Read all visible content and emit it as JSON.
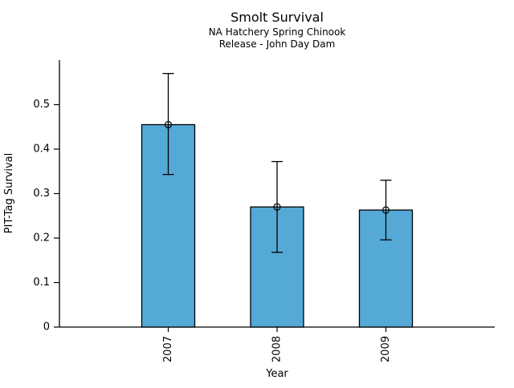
{
  "chart_data": {
    "type": "bar",
    "title": "Smolt Survival",
    "subtitle": [
      "NA Hatchery Spring Chinook",
      "Release - John Day Dam"
    ],
    "xlabel": "Year",
    "ylabel": "PIT-Tag Survival",
    "categories": [
      "2007",
      "2008",
      "2009"
    ],
    "values": [
      0.455,
      0.27,
      0.263
    ],
    "error_low": [
      0.343,
      0.168,
      0.196
    ],
    "error_high": [
      0.57,
      0.372,
      0.33
    ],
    "marker": "open-circle",
    "ylim": [
      0,
      0.6
    ],
    "ytick_values": [
      0,
      0.1,
      0.2,
      0.3,
      0.4,
      0.5
    ],
    "ytick_labels": [
      "0",
      "0.1",
      "0.2",
      "0.3",
      "0.4",
      "0.5"
    ],
    "grid": false,
    "legend_position": "none",
    "bar_color": "#55A9D6",
    "bar_edge_color": "#000000",
    "error_bar_color": "#000000",
    "axis_color": "#000000",
    "text_color": "#000000",
    "background_color": "#ffffff"
  }
}
